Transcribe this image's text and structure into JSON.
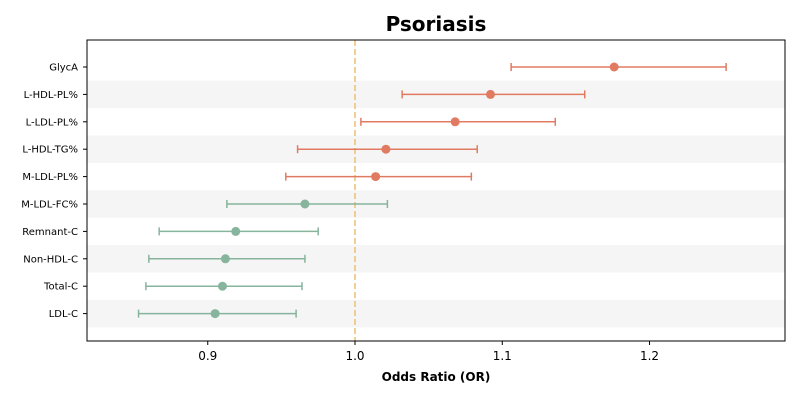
{
  "chart_data": {
    "type": "scatter",
    "title": "Psoriasis",
    "xlabel": "Odds Ratio (OR)",
    "ylabel": "",
    "xlim": [
      0.818,
      1.292
    ],
    "xticks": [
      0.9,
      1.0,
      1.1,
      1.2
    ],
    "x_tick_labels": [
      "0.9",
      "1.0",
      "1.1",
      "1.2"
    ],
    "reference_line": 1.0,
    "reference_line_color": "#f0c27b",
    "alternating_row_color": "#f5f5f5",
    "grid": false,
    "colors": {
      "above_one": "#e07b62",
      "below_one": "#86b49c"
    },
    "rows": [
      {
        "label": "GlycA",
        "or": 1.176,
        "lower": 1.106,
        "upper": 1.252,
        "group": "above_one"
      },
      {
        "label": "L-HDL-PL%",
        "or": 1.092,
        "lower": 1.032,
        "upper": 1.156,
        "group": "above_one"
      },
      {
        "label": "L-LDL-PL%",
        "or": 1.068,
        "lower": 1.004,
        "upper": 1.136,
        "group": "above_one"
      },
      {
        "label": "L-HDL-TG%",
        "or": 1.021,
        "lower": 0.961,
        "upper": 1.083,
        "group": "above_one"
      },
      {
        "label": "M-LDL-PL%",
        "or": 1.014,
        "lower": 0.953,
        "upper": 1.079,
        "group": "above_one"
      },
      {
        "label": "M-LDL-FC%",
        "or": 0.966,
        "lower": 0.913,
        "upper": 1.022,
        "group": "below_one"
      },
      {
        "label": "Remnant-C",
        "or": 0.919,
        "lower": 0.867,
        "upper": 0.975,
        "group": "below_one"
      },
      {
        "label": "Non-HDL-C",
        "or": 0.912,
        "lower": 0.86,
        "upper": 0.966,
        "group": "below_one"
      },
      {
        "label": "Total-C",
        "or": 0.91,
        "lower": 0.858,
        "upper": 0.964,
        "group": "below_one"
      },
      {
        "label": "LDL-C",
        "or": 0.905,
        "lower": 0.853,
        "upper": 0.96,
        "group": "below_one"
      }
    ]
  }
}
